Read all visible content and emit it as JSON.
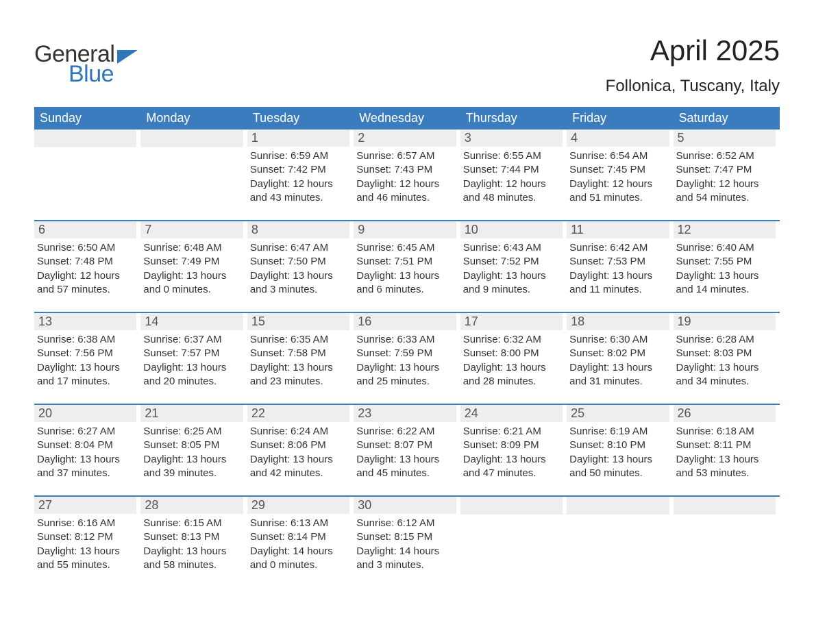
{
  "logo": {
    "general": "General",
    "blue": "Blue"
  },
  "title": {
    "month": "April 2025",
    "location": "Follonica, Tuscany, Italy"
  },
  "styling": {
    "page_bg": "#ffffff",
    "header_bar_bg": "#3b7cbf",
    "header_bar_text": "#ffffff",
    "daynum_bg": "#eeeeee",
    "daynum_text": "#555555",
    "body_text": "#333333",
    "week_top_border": "#3b7cbf",
    "logo_general_color": "#333333",
    "logo_blue_color": "#2f76bb",
    "title_fontsize": 42,
    "location_fontsize": 24,
    "weekday_fontsize": 18,
    "daynum_fontsize": 18,
    "body_fontsize": 15,
    "columns": 7,
    "rows": 5
  },
  "weekdays": [
    "Sunday",
    "Monday",
    "Tuesday",
    "Wednesday",
    "Thursday",
    "Friday",
    "Saturday"
  ],
  "weeks": [
    [
      {
        "n": "",
        "sunrise": "",
        "sunset": "",
        "daylight": ""
      },
      {
        "n": "",
        "sunrise": "",
        "sunset": "",
        "daylight": ""
      },
      {
        "n": "1",
        "sunrise": "Sunrise: 6:59 AM",
        "sunset": "Sunset: 7:42 PM",
        "daylight": "Daylight: 12 hours and 43 minutes."
      },
      {
        "n": "2",
        "sunrise": "Sunrise: 6:57 AM",
        "sunset": "Sunset: 7:43 PM",
        "daylight": "Daylight: 12 hours and 46 minutes."
      },
      {
        "n": "3",
        "sunrise": "Sunrise: 6:55 AM",
        "sunset": "Sunset: 7:44 PM",
        "daylight": "Daylight: 12 hours and 48 minutes."
      },
      {
        "n": "4",
        "sunrise": "Sunrise: 6:54 AM",
        "sunset": "Sunset: 7:45 PM",
        "daylight": "Daylight: 12 hours and 51 minutes."
      },
      {
        "n": "5",
        "sunrise": "Sunrise: 6:52 AM",
        "sunset": "Sunset: 7:47 PM",
        "daylight": "Daylight: 12 hours and 54 minutes."
      }
    ],
    [
      {
        "n": "6",
        "sunrise": "Sunrise: 6:50 AM",
        "sunset": "Sunset: 7:48 PM",
        "daylight": "Daylight: 12 hours and 57 minutes."
      },
      {
        "n": "7",
        "sunrise": "Sunrise: 6:48 AM",
        "sunset": "Sunset: 7:49 PM",
        "daylight": "Daylight: 13 hours and 0 minutes."
      },
      {
        "n": "8",
        "sunrise": "Sunrise: 6:47 AM",
        "sunset": "Sunset: 7:50 PM",
        "daylight": "Daylight: 13 hours and 3 minutes."
      },
      {
        "n": "9",
        "sunrise": "Sunrise: 6:45 AM",
        "sunset": "Sunset: 7:51 PM",
        "daylight": "Daylight: 13 hours and 6 minutes."
      },
      {
        "n": "10",
        "sunrise": "Sunrise: 6:43 AM",
        "sunset": "Sunset: 7:52 PM",
        "daylight": "Daylight: 13 hours and 9 minutes."
      },
      {
        "n": "11",
        "sunrise": "Sunrise: 6:42 AM",
        "sunset": "Sunset: 7:53 PM",
        "daylight": "Daylight: 13 hours and 11 minutes."
      },
      {
        "n": "12",
        "sunrise": "Sunrise: 6:40 AM",
        "sunset": "Sunset: 7:55 PM",
        "daylight": "Daylight: 13 hours and 14 minutes."
      }
    ],
    [
      {
        "n": "13",
        "sunrise": "Sunrise: 6:38 AM",
        "sunset": "Sunset: 7:56 PM",
        "daylight": "Daylight: 13 hours and 17 minutes."
      },
      {
        "n": "14",
        "sunrise": "Sunrise: 6:37 AM",
        "sunset": "Sunset: 7:57 PM",
        "daylight": "Daylight: 13 hours and 20 minutes."
      },
      {
        "n": "15",
        "sunrise": "Sunrise: 6:35 AM",
        "sunset": "Sunset: 7:58 PM",
        "daylight": "Daylight: 13 hours and 23 minutes."
      },
      {
        "n": "16",
        "sunrise": "Sunrise: 6:33 AM",
        "sunset": "Sunset: 7:59 PM",
        "daylight": "Daylight: 13 hours and 25 minutes."
      },
      {
        "n": "17",
        "sunrise": "Sunrise: 6:32 AM",
        "sunset": "Sunset: 8:00 PM",
        "daylight": "Daylight: 13 hours and 28 minutes."
      },
      {
        "n": "18",
        "sunrise": "Sunrise: 6:30 AM",
        "sunset": "Sunset: 8:02 PM",
        "daylight": "Daylight: 13 hours and 31 minutes."
      },
      {
        "n": "19",
        "sunrise": "Sunrise: 6:28 AM",
        "sunset": "Sunset: 8:03 PM",
        "daylight": "Daylight: 13 hours and 34 minutes."
      }
    ],
    [
      {
        "n": "20",
        "sunrise": "Sunrise: 6:27 AM",
        "sunset": "Sunset: 8:04 PM",
        "daylight": "Daylight: 13 hours and 37 minutes."
      },
      {
        "n": "21",
        "sunrise": "Sunrise: 6:25 AM",
        "sunset": "Sunset: 8:05 PM",
        "daylight": "Daylight: 13 hours and 39 minutes."
      },
      {
        "n": "22",
        "sunrise": "Sunrise: 6:24 AM",
        "sunset": "Sunset: 8:06 PM",
        "daylight": "Daylight: 13 hours and 42 minutes."
      },
      {
        "n": "23",
        "sunrise": "Sunrise: 6:22 AM",
        "sunset": "Sunset: 8:07 PM",
        "daylight": "Daylight: 13 hours and 45 minutes."
      },
      {
        "n": "24",
        "sunrise": "Sunrise: 6:21 AM",
        "sunset": "Sunset: 8:09 PM",
        "daylight": "Daylight: 13 hours and 47 minutes."
      },
      {
        "n": "25",
        "sunrise": "Sunrise: 6:19 AM",
        "sunset": "Sunset: 8:10 PM",
        "daylight": "Daylight: 13 hours and 50 minutes."
      },
      {
        "n": "26",
        "sunrise": "Sunrise: 6:18 AM",
        "sunset": "Sunset: 8:11 PM",
        "daylight": "Daylight: 13 hours and 53 minutes."
      }
    ],
    [
      {
        "n": "27",
        "sunrise": "Sunrise: 6:16 AM",
        "sunset": "Sunset: 8:12 PM",
        "daylight": "Daylight: 13 hours and 55 minutes."
      },
      {
        "n": "28",
        "sunrise": "Sunrise: 6:15 AM",
        "sunset": "Sunset: 8:13 PM",
        "daylight": "Daylight: 13 hours and 58 minutes."
      },
      {
        "n": "29",
        "sunrise": "Sunrise: 6:13 AM",
        "sunset": "Sunset: 8:14 PM",
        "daylight": "Daylight: 14 hours and 0 minutes."
      },
      {
        "n": "30",
        "sunrise": "Sunrise: 6:12 AM",
        "sunset": "Sunset: 8:15 PM",
        "daylight": "Daylight: 14 hours and 3 minutes."
      },
      {
        "n": "",
        "sunrise": "",
        "sunset": "",
        "daylight": ""
      },
      {
        "n": "",
        "sunrise": "",
        "sunset": "",
        "daylight": ""
      },
      {
        "n": "",
        "sunrise": "",
        "sunset": "",
        "daylight": ""
      }
    ]
  ]
}
